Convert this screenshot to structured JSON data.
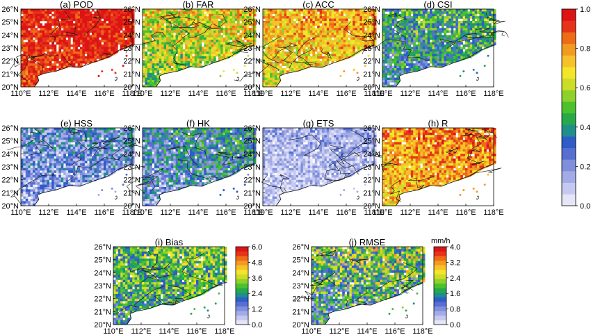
{
  "lat_labels": [
    "20°N",
    "21°N",
    "22°N",
    "23°N",
    "24°N",
    "25°N",
    "26°N"
  ],
  "lon_labels": [
    "110°E",
    "112°E",
    "114°E",
    "116°E",
    "118°E"
  ],
  "panels": [
    {
      "id": "pod",
      "title": "(a) POD",
      "scale": "main",
      "level": 0.93,
      "spread": 0.1
    },
    {
      "id": "far",
      "title": "(b) FAR",
      "scale": "main",
      "level": 0.62,
      "spread": 0.2
    },
    {
      "id": "acc",
      "title": "(c) ACC",
      "scale": "main",
      "level": 0.72,
      "spread": 0.16
    },
    {
      "id": "csi",
      "title": "(d) CSI",
      "scale": "main",
      "level": 0.4,
      "spread": 0.2
    },
    {
      "id": "hss",
      "title": "(e) HSS",
      "scale": "main",
      "level": 0.22,
      "spread": 0.18
    },
    {
      "id": "hk",
      "title": "(f) HK",
      "scale": "main",
      "level": 0.3,
      "spread": 0.2
    },
    {
      "id": "ets",
      "title": "(g) ETS",
      "scale": "main",
      "level": 0.12,
      "spread": 0.12
    },
    {
      "id": "r",
      "title": "(h) R",
      "scale": "main",
      "level": 0.78,
      "spread": 0.15
    },
    {
      "id": "bias",
      "title": "(i) Bias",
      "scale": "bias",
      "level": 2.8,
      "spread": 1.2
    },
    {
      "id": "rmse",
      "title": "(j) RMSE",
      "scale": "rmse",
      "level": 1.8,
      "spread": 1.1
    }
  ],
  "colorbars": {
    "main": {
      "ticks": [
        "0.0",
        "0.2",
        "0.4",
        "0.6",
        "0.8",
        "1.0"
      ],
      "min": 0,
      "max": 1.0,
      "unit": ""
    },
    "bias": {
      "ticks": [
        "0.0",
        "1.2",
        "2.4",
        "3.6",
        "4.8",
        "6.0"
      ],
      "min": 0,
      "max": 6.0,
      "unit": ""
    },
    "rmse": {
      "ticks": [
        "0.0",
        "0.8",
        "1.6",
        "2.4",
        "3.2",
        "4.0"
      ],
      "min": 0,
      "max": 4.0,
      "unit": "mm/h"
    }
  },
  "colors": {
    "ramp": [
      "#e4e6f7",
      "#c5c9f0",
      "#a3ace6",
      "#7f8fdc",
      "#5570d1",
      "#2f5cc7",
      "#1f8f8a",
      "#27a94a",
      "#4cc12d",
      "#8fd12a",
      "#cddc28",
      "#f3e52a",
      "#f6c12a",
      "#f39a20",
      "#ee6b18",
      "#e5341a",
      "#dd1414"
    ],
    "boundary": "#111111"
  }
}
